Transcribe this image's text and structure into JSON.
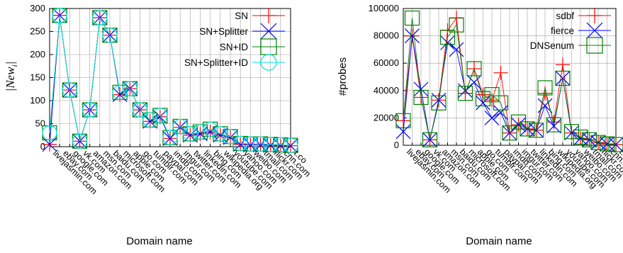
{
  "chart_data": [
    {
      "type": "line",
      "xlabel": "Domain name",
      "ylabel": "|New",
      "ylabel_subscript": "i",
      "ylabel_suffix": "|",
      "ylim": [
        0,
        300
      ],
      "yticks": [
        "0",
        "50",
        "100",
        "150",
        "200",
        "250",
        "300"
      ],
      "grid": true,
      "legend_position": "top-right",
      "categories": [
        "livejasmin.com",
        "ebay.com",
        "google.com",
        "vk.com",
        "amazon.com",
        "msn.com",
        "baidu.com",
        "microsoft.com",
        "apple.com",
        "go.com",
        "tumblr.com",
        "paypal.com",
        "imdb.com",
        "imgur.com",
        "twitter.com",
        "linkedin.com",
        "bing.com",
        "wikipedia.org",
        "youtube.com",
        "yahoo.com",
        "weibo.com",
        "tmall.com",
        "flickr.com",
        "cnn.com",
        "t.co"
      ],
      "series": [
        {
          "name": "SN",
          "color": "#ff0000",
          "marker": "plus",
          "values": [
            5,
            285,
            123,
            12,
            80,
            280,
            242,
            113,
            126,
            80,
            55,
            65,
            18,
            42,
            25,
            28,
            32,
            25,
            20,
            5,
            4,
            4,
            3,
            2,
            2
          ]
        },
        {
          "name": "SN+Splitter",
          "color": "#0000ff",
          "marker": "x",
          "values": [
            5,
            285,
            123,
            12,
            80,
            280,
            242,
            113,
            126,
            80,
            55,
            65,
            18,
            42,
            25,
            28,
            32,
            25,
            20,
            5,
            4,
            4,
            3,
            2,
            2
          ]
        },
        {
          "name": "SN+ID",
          "color": "#008000",
          "marker": "square",
          "values": [
            30,
            285,
            123,
            12,
            80,
            280,
            242,
            118,
            126,
            80,
            58,
            68,
            20,
            44,
            28,
            32,
            38,
            28,
            22,
            7,
            6,
            6,
            5,
            4,
            3
          ]
        },
        {
          "name": "SN+Splitter+ID",
          "color": "#00e5e5",
          "marker": "circle",
          "values": [
            30,
            285,
            123,
            12,
            80,
            280,
            242,
            118,
            126,
            80,
            58,
            68,
            20,
            44,
            28,
            32,
            38,
            28,
            22,
            7,
            6,
            6,
            5,
            4,
            3
          ]
        }
      ]
    },
    {
      "type": "line",
      "xlabel": "Domain name",
      "ylabel": "#probes",
      "ylim": [
        0,
        100000
      ],
      "yticks": [
        "0",
        "20000",
        "40000",
        "60000",
        "80000",
        "100000"
      ],
      "grid": true,
      "legend_position": "top-right",
      "categories": [
        "livejasmin.com",
        "ebay.com",
        "google.com",
        "vk.com",
        "amazon.com",
        "msn.com",
        "baidu.com",
        "microsoft.com",
        "apple.com",
        "go.com",
        "tumblr.com",
        "paypal.com",
        "imdb.com",
        "imgur.com",
        "twitter.com",
        "linkedin.com",
        "bing.com",
        "wikipedia.org",
        "youtube.com",
        "yahoo.com",
        "weibo.com",
        "tmall.com",
        "flickr.com",
        "cnn.com",
        "t.co"
      ],
      "series": [
        {
          "name": "sdbf",
          "color": "#ff0000",
          "marker": "plus",
          "values": [
            18000,
            80000,
            35000,
            4000,
            33000,
            84000,
            93000,
            38000,
            56000,
            37000,
            33000,
            53000,
            9000,
            15000,
            12000,
            11000,
            38000,
            17000,
            59000,
            9000,
            5000,
            4000,
            2000,
            1000,
            500
          ]
        },
        {
          "name": "fierce",
          "color": "#0000ff",
          "marker": "x",
          "values": [
            10000,
            80000,
            41000,
            4000,
            33000,
            75000,
            70000,
            40000,
            46000,
            31000,
            20000,
            24000,
            9000,
            15000,
            12000,
            11000,
            29000,
            14000,
            49000,
            9000,
            5000,
            4000,
            2000,
            1000,
            500
          ]
        },
        {
          "name": "DNSenum",
          "color": "#008000",
          "marker": "square",
          "values": [
            18000,
            93000,
            35000,
            4000,
            31000,
            79000,
            88000,
            38000,
            56000,
            34000,
            37000,
            31000,
            9000,
            17000,
            12000,
            11000,
            42000,
            15000,
            49000,
            10000,
            6000,
            4000,
            2000,
            1000,
            500
          ]
        }
      ]
    }
  ]
}
